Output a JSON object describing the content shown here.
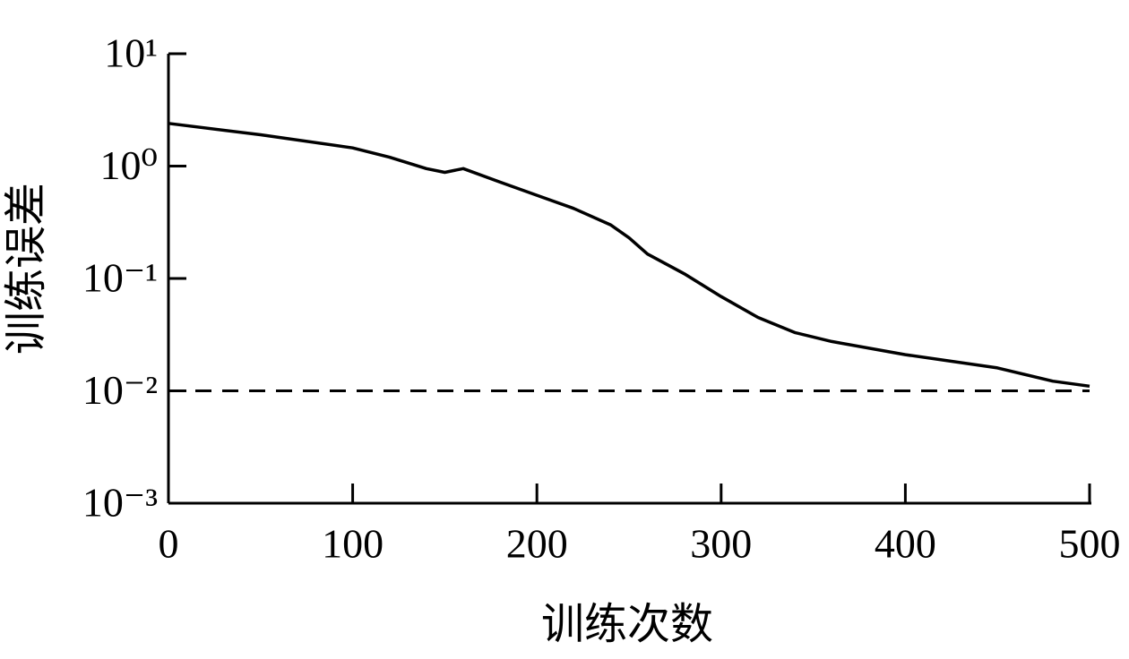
{
  "chart_data": {
    "type": "line",
    "xlabel": "训练次数",
    "ylabel": "训练误差",
    "x": [
      0,
      50,
      100,
      120,
      140,
      150,
      160,
      180,
      200,
      220,
      240,
      250,
      260,
      280,
      300,
      320,
      340,
      360,
      400,
      450,
      480,
      500
    ],
    "values": [
      2.4,
      1.9,
      1.45,
      1.2,
      0.95,
      0.88,
      0.95,
      0.72,
      0.55,
      0.42,
      0.3,
      0.23,
      0.165,
      0.11,
      0.069,
      0.045,
      0.033,
      0.0275,
      0.021,
      0.016,
      0.0122,
      0.011
    ],
    "color": "#000000",
    "xlim": [
      0,
      500
    ],
    "xticks": [
      0,
      100,
      200,
      300,
      400,
      500
    ],
    "ylim": [
      0.001,
      10
    ],
    "yscale": "log",
    "yticks": [
      {
        "value": 0.001,
        "label": "10⁻³"
      },
      {
        "value": 0.01,
        "label": "10⁻²"
      },
      {
        "value": 0.1,
        "label": "10⁻¹"
      },
      {
        "value": 1,
        "label": "10⁰"
      },
      {
        "value": 10,
        "label": "10¹"
      }
    ],
    "reference_line": {
      "value": 0.01,
      "style": "dashed"
    },
    "grid": false
  }
}
